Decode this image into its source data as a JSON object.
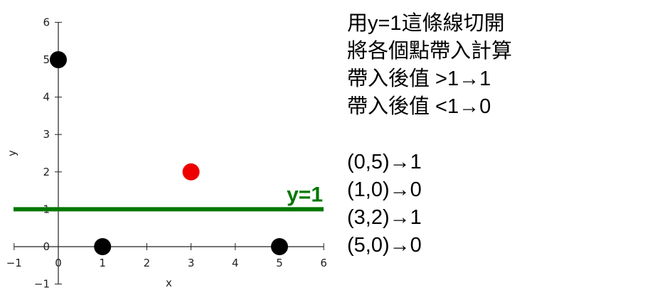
{
  "chart_data": {
    "type": "scatter",
    "xlabel": "x",
    "ylabel": "y",
    "xlim": [
      -1,
      6
    ],
    "ylim": [
      -1,
      6
    ],
    "x_ticks": [
      "−1",
      "0",
      "1",
      "2",
      "3",
      "4",
      "5",
      "6"
    ],
    "y_ticks": [
      "−1",
      "0",
      "1",
      "2",
      "3",
      "4",
      "5",
      "6"
    ],
    "points": [
      {
        "x": 0,
        "y": 5,
        "color": "#000000"
      },
      {
        "x": 1,
        "y": 0,
        "color": "#000000"
      },
      {
        "x": 3,
        "y": 2,
        "color": "#ee0000"
      },
      {
        "x": 5,
        "y": 0,
        "color": "#000000"
      }
    ],
    "hline": {
      "y": 1,
      "x_from": -1,
      "x_to": 6,
      "color": "#007700"
    },
    "annotation": {
      "text": "y=1",
      "color": "#007700"
    }
  },
  "notes": {
    "lines": [
      "用y=1這條線切開",
      "將各個點帶入計算",
      "帶入後值 >1→1",
      "帶入後值 <1→0"
    ],
    "results": [
      "(0,5)→1",
      "(1,0)→0",
      "(3,2)→1",
      "(5,0)→0"
    ]
  }
}
